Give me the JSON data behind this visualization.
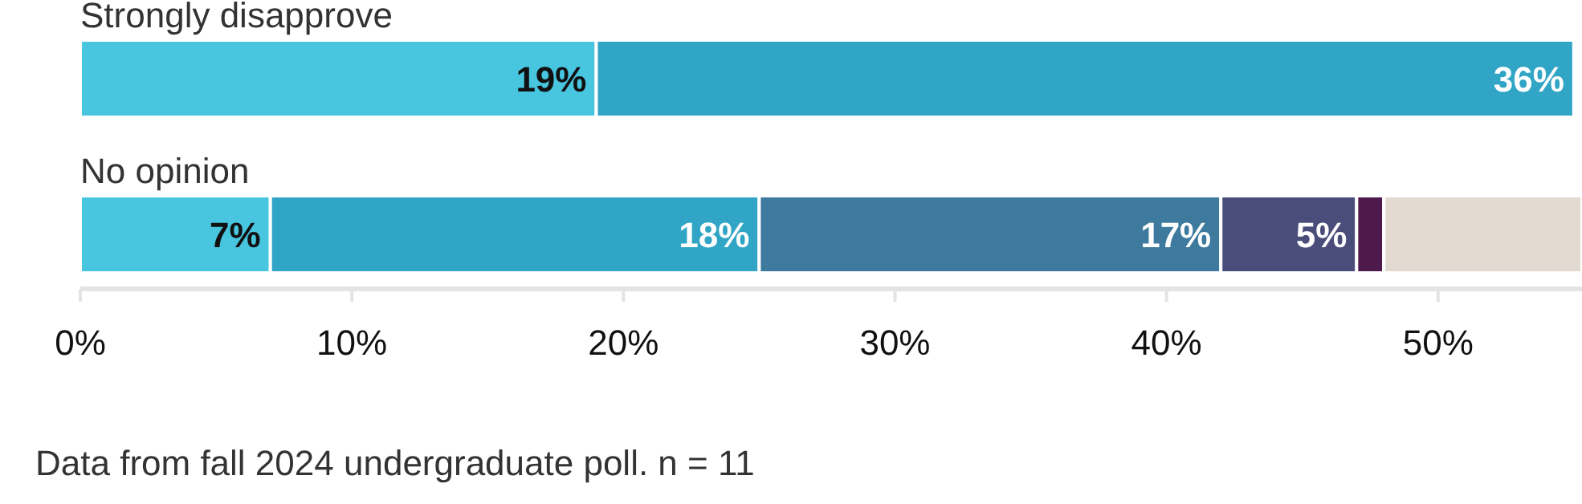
{
  "chart_data": {
    "type": "bar",
    "orientation": "horizontal",
    "stacked": true,
    "categories": [
      "Strongly disapprove",
      "No opinion"
    ],
    "series": [
      {
        "color": "#48c5df",
        "values": [
          19,
          7
        ],
        "value_labels": [
          "19%",
          "7%"
        ]
      },
      {
        "color": "#30a5c6",
        "values": [
          36,
          18
        ],
        "value_labels": [
          "36%",
          "18%"
        ]
      },
      {
        "color": "#3d7a9e",
        "values": [
          null,
          17
        ],
        "value_labels": [
          null,
          "17%"
        ]
      },
      {
        "color": "#4a4c7a",
        "values": [
          null,
          5
        ],
        "value_labels": [
          null,
          "5%"
        ]
      },
      {
        "color": "#4e1a4e",
        "values": [
          null,
          1
        ],
        "value_labels": [
          null,
          null
        ]
      },
      {
        "color": "#e2d9d1",
        "values": [
          null,
          7.3
        ],
        "value_labels": [
          null,
          null
        ]
      }
    ],
    "xlim": [
      0,
      55.3
    ],
    "xticks": [
      {
        "value": 0,
        "label": "0%"
      },
      {
        "value": 10,
        "label": "10%"
      },
      {
        "value": 20,
        "label": "20%"
      },
      {
        "value": 30,
        "label": "30%"
      },
      {
        "value": 40,
        "label": "40%"
      },
      {
        "value": 50,
        "label": "50%"
      }
    ],
    "grid": false,
    "annotations": [
      "Data from fall 2024 undergraduate poll. n = 11"
    ]
  }
}
